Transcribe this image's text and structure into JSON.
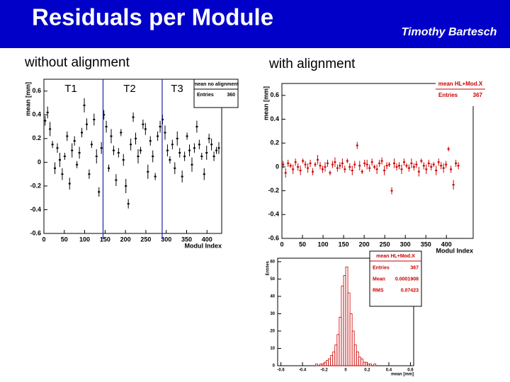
{
  "header": {
    "title": "Residuals per Module",
    "author": "Timothy Bartesch"
  },
  "labels": {
    "left": "without alignment",
    "right": "with alignment"
  },
  "chart_data": [
    {
      "type": "scatter",
      "color": "#000000",
      "divider_color": "#2222aa",
      "xlabel": "Modul Index",
      "ylabel": "mean [mm]",
      "xlim": [
        0,
        436
      ],
      "ylim": [
        -0.6,
        0.7
      ],
      "xticks": [
        0,
        50,
        100,
        150,
        200,
        250,
        300,
        350,
        400
      ],
      "yticks": [
        -0.6,
        -0.4,
        -0.2,
        0,
        0.2,
        0.4,
        0.6
      ],
      "dividers": [
        145,
        290
      ],
      "annotations": [
        "T1",
        "T2",
        "T3"
      ],
      "stats_title": "mean no alignment",
      "stats": [
        {
          "label": "Entries",
          "value": 360
        }
      ],
      "x": [
        3,
        9,
        15,
        21,
        27,
        33,
        39,
        45,
        51,
        57,
        63,
        69,
        75,
        81,
        87,
        93,
        99,
        105,
        111,
        117,
        123,
        129,
        135,
        141,
        147,
        153,
        159,
        165,
        171,
        177,
        183,
        189,
        195,
        201,
        207,
        213,
        219,
        225,
        231,
        237,
        243,
        249,
        255,
        261,
        267,
        273,
        279,
        285,
        291,
        297,
        303,
        309,
        315,
        321,
        327,
        333,
        339,
        345,
        351,
        357,
        363,
        369,
        375,
        381,
        387,
        393,
        399,
        405,
        411,
        417,
        423,
        429
      ],
      "values": [
        0.35,
        0.42,
        0.28,
        0.15,
        -0.05,
        0.12,
        0.02,
        -0.1,
        0.05,
        0.22,
        -0.18,
        0.1,
        0.18,
        -0.02,
        0.08,
        0.25,
        0.48,
        0.32,
        -0.1,
        0.15,
        0.36,
        0.05,
        -0.25,
        0.12,
        0.4,
        0.3,
        -0.05,
        0.22,
        0.1,
        -0.15,
        0.08,
        0.25,
        0.02,
        -0.2,
        -0.35,
        0.15,
        0.38,
        0.2,
        0.05,
        0.1,
        0.32,
        0.28,
        -0.08,
        0.18,
        0.05,
        -0.12,
        0.22,
        0.3,
        0.36,
        0.25,
        0.1,
        0.02,
        0.15,
        -0.05,
        0.2,
        0.08,
        -0.12,
        0.05,
        0.22,
        0.1,
        -0.02,
        0.12,
        0.3,
        0.15,
        0.05,
        -0.1,
        0.08,
        0.2,
        0.15,
        0.05,
        0.1,
        0.12
      ],
      "errors": [
        0.04,
        0.05,
        0.06,
        0.03,
        0.05,
        0.04,
        0.06,
        0.05,
        0.03,
        0.04,
        0.05,
        0.06,
        0.04,
        0.03,
        0.05,
        0.04,
        0.06,
        0.05,
        0.04,
        0.03,
        0.05,
        0.06,
        0.04,
        0.05,
        0.04,
        0.05,
        0.03,
        0.06,
        0.04,
        0.05,
        0.04,
        0.03,
        0.05,
        0.06,
        0.04,
        0.05,
        0.04,
        0.05,
        0.06,
        0.03,
        0.04,
        0.05,
        0.06,
        0.04,
        0.05,
        0.03,
        0.04,
        0.05,
        0.04,
        0.06,
        0.05,
        0.03,
        0.04,
        0.05,
        0.06,
        0.04,
        0.05,
        0.04,
        0.03,
        0.05,
        0.06,
        0.04,
        0.05,
        0.04,
        0.03,
        0.05,
        0.06,
        0.04,
        0.05,
        0.04,
        0.03,
        0.05
      ]
    },
    {
      "type": "scatter",
      "color": "#cc0000",
      "xlabel": "Modul Index",
      "ylabel": "mean [mm]",
      "xlim": [
        0,
        465
      ],
      "ylim": [
        -0.6,
        0.7
      ],
      "xticks": [
        0,
        50,
        100,
        150,
        200,
        250,
        300,
        350,
        400
      ],
      "yticks": [
        -0.6,
        -0.4,
        -0.2,
        0,
        0.2,
        0.4,
        0.6
      ],
      "stats_title": "mean HL+Mod.X",
      "stats": [
        {
          "label": "Entries",
          "value": 367
        }
      ],
      "x": [
        3,
        9,
        15,
        21,
        27,
        33,
        39,
        45,
        51,
        57,
        63,
        69,
        75,
        81,
        87,
        93,
        99,
        105,
        111,
        117,
        123,
        129,
        135,
        141,
        147,
        153,
        159,
        165,
        171,
        177,
        183,
        189,
        195,
        201,
        207,
        213,
        219,
        225,
        231,
        237,
        243,
        249,
        255,
        261,
        267,
        273,
        279,
        285,
        291,
        297,
        303,
        309,
        315,
        321,
        327,
        333,
        339,
        345,
        351,
        357,
        363,
        369,
        375,
        381,
        387,
        393,
        399,
        405,
        411,
        417,
        423,
        429
      ],
      "values": [
        0.02,
        -0.05,
        0.03,
        0.01,
        -0.02,
        0.04,
        0,
        -0.03,
        0.05,
        0.02,
        -0.01,
        0.03,
        -0.04,
        0.02,
        0.06,
        0.01,
        -0.02,
        0,
        0.03,
        -0.05,
        0.02,
        0.04,
        -0.01,
        0.01,
        0.03,
        -0.02,
        0.05,
        0,
        -0.03,
        0.02,
        0.18,
        0.01,
        -0.04,
        0.03,
        0.02,
        -0.01,
        0.04,
        0,
        -0.02,
        0.03,
        0.05,
        -0.03,
        0.01,
        0.02,
        -0.2,
        0.03,
        0,
        0.01,
        -0.02,
        0.04,
        0.01,
        -0.01,
        0.03,
        0,
        0.02,
        -0.04,
        0.05,
        0.01,
        -0.02,
        0.03,
        0,
        0.02,
        -0.03,
        0.04,
        0.01,
        -0.01,
        0.02,
        0.15,
        -0.02,
        -0.15,
        0.03,
        0.01
      ],
      "errors": [
        0.03,
        0.04,
        0.03,
        0.02,
        0.04,
        0.03,
        0.03,
        0.04,
        0.02,
        0.03,
        0.04,
        0.03,
        0.03,
        0.02,
        0.04,
        0.03,
        0.03,
        0.04,
        0.03,
        0.02,
        0.03,
        0.04,
        0.03,
        0.03,
        0.04,
        0.03,
        0.02,
        0.03,
        0.04,
        0.03,
        0.03,
        0.04,
        0.02,
        0.03,
        0.04,
        0.03,
        0.03,
        0.02,
        0.04,
        0.03,
        0.03,
        0.04,
        0.03,
        0.02,
        0.03,
        0.04,
        0.03,
        0.03,
        0.04,
        0.03,
        0.02,
        0.03,
        0.04,
        0.03,
        0.03,
        0.04,
        0.02,
        0.03,
        0.04,
        0.03,
        0.03,
        0.02,
        0.04,
        0.03,
        0.03,
        0.04,
        0.03,
        0.02,
        0.03,
        0.04,
        0.03,
        0.03
      ]
    },
    {
      "type": "histogram",
      "color": "#cc0000",
      "xlabel": "mean [mm]",
      "ylabel": "Entries",
      "xlim": [
        -0.63,
        0.63
      ],
      "ylim": [
        0,
        62
      ],
      "xticks": [
        -0.6,
        -0.4,
        -0.2,
        0,
        0.2,
        0.4,
        0.6
      ],
      "yticks": [
        0,
        10,
        20,
        30,
        40,
        50,
        60
      ],
      "stats_title": "mean HL+Mod.X",
      "stats": [
        {
          "label": "Entries",
          "value": 367
        },
        {
          "label": "Mean",
          "value": 0.0001908
        },
        {
          "label": "RMS",
          "value": 0.07423
        }
      ],
      "bins": [
        -0.3,
        -0.28,
        -0.26,
        -0.24,
        -0.22,
        -0.2,
        -0.18,
        -0.16,
        -0.14,
        -0.12,
        -0.1,
        -0.08,
        -0.06,
        -0.04,
        -0.02,
        0,
        0.02,
        0.04,
        0.06,
        0.08,
        0.1,
        0.12,
        0.14,
        0.16,
        0.18,
        0.2,
        0.22,
        0.24,
        0.26,
        0.28,
        0.3
      ],
      "counts": [
        0,
        1,
        0,
        1,
        1,
        2,
        3,
        4,
        6,
        8,
        12,
        18,
        28,
        46,
        52,
        57,
        42,
        30,
        20,
        12,
        8,
        5,
        4,
        2,
        2,
        1,
        1,
        0,
        1,
        0
      ]
    }
  ]
}
